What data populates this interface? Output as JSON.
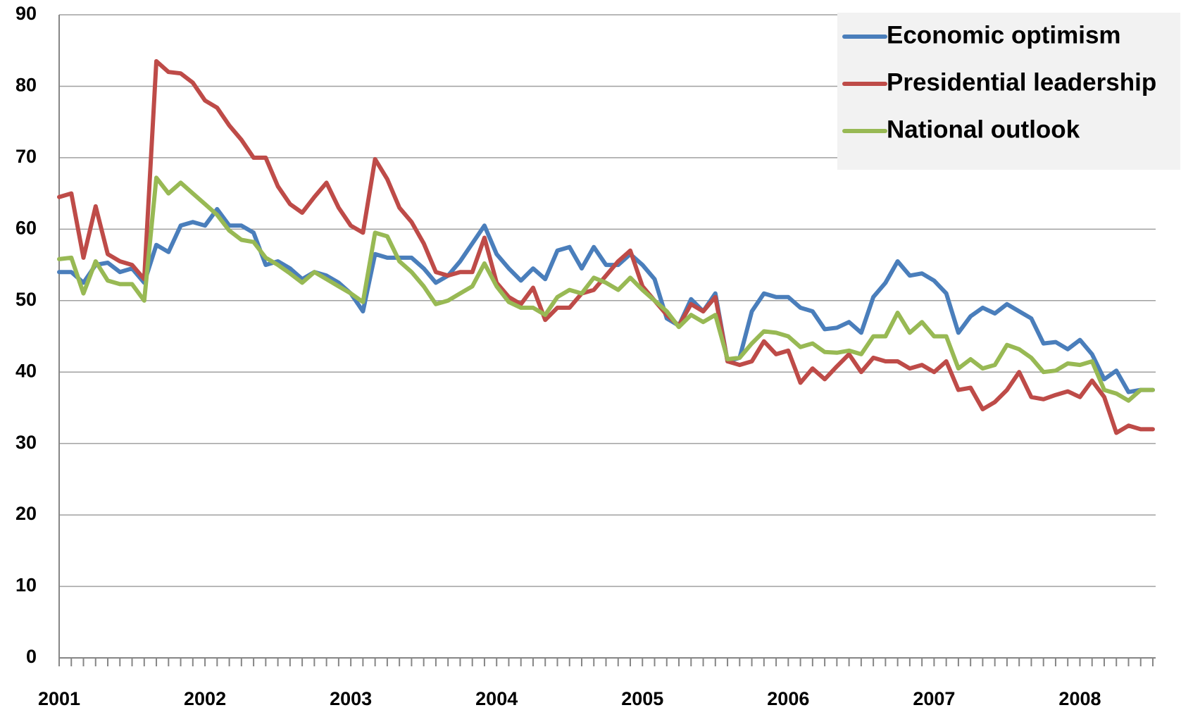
{
  "chart_data": {
    "type": "line",
    "categories": [
      "2001",
      null,
      null,
      null,
      null,
      null,
      null,
      null,
      null,
      null,
      null,
      null,
      "2002",
      null,
      null,
      null,
      null,
      null,
      null,
      null,
      null,
      null,
      null,
      null,
      "2003",
      null,
      null,
      null,
      null,
      null,
      null,
      null,
      null,
      null,
      null,
      null,
      "2004",
      null,
      null,
      null,
      null,
      null,
      null,
      null,
      null,
      null,
      null,
      null,
      "2005",
      null,
      null,
      null,
      null,
      null,
      null,
      null,
      null,
      null,
      null,
      null,
      "2006",
      null,
      null,
      null,
      null,
      null,
      null,
      null,
      null,
      null,
      null,
      null,
      "2007",
      null,
      null,
      null,
      null,
      null,
      null,
      null,
      null,
      null,
      null,
      null,
      "2008",
      null,
      null,
      null,
      null,
      null,
      null
    ],
    "series": [
      {
        "name": "Economic optimism",
        "color": "#4a7ebb",
        "values": [
          54,
          54,
          52.5,
          55,
          55.3,
          54,
          54.5,
          52.5,
          57.8,
          56.8,
          60.5,
          61,
          60.5,
          62.8,
          60.5,
          60.5,
          59.5,
          55,
          55.5,
          54.5,
          53,
          54,
          53.5,
          52.5,
          51,
          48.5,
          56.5,
          56,
          56,
          56,
          54.5,
          52.5,
          53.5,
          55.5,
          58,
          60.5,
          56.5,
          54.5,
          52.8,
          54.5,
          53,
          57,
          57.5,
          54.5,
          57.5,
          55,
          55,
          56.5,
          55,
          53,
          47.5,
          46.5,
          50.2,
          48.5,
          51,
          41.5,
          42,
          48.5,
          51,
          50.5,
          50.5,
          49,
          48.5,
          46,
          46.2,
          47,
          45.5,
          50.5,
          52.5,
          55.5,
          53.5,
          53.8,
          52.8,
          51,
          45.5,
          47.8,
          49,
          48.2,
          49.5,
          48.5,
          47.5,
          44,
          44.2,
          43.2,
          44.5,
          42.5,
          39,
          40.2,
          37.2,
          37.5,
          37.5
        ]
      },
      {
        "name": "Presidential leadership",
        "color": "#be4b48",
        "values": [
          64.5,
          65,
          56,
          63.2,
          56.5,
          55.5,
          55,
          53,
          83.5,
          82,
          81.8,
          80.5,
          78,
          77,
          74.5,
          72.5,
          70,
          70,
          66,
          63.5,
          62.3,
          64.5,
          66.5,
          63,
          60.5,
          59.5,
          69.8,
          67,
          63,
          61,
          58,
          54,
          53.5,
          54,
          54,
          58.8,
          52.5,
          50.5,
          49.5,
          51.8,
          47.3,
          49,
          49,
          51,
          51.5,
          53.5,
          55.5,
          57,
          52,
          50,
          48,
          46.5,
          49.5,
          48.5,
          50.5,
          41.5,
          41,
          41.5,
          44.3,
          42.5,
          43,
          38.5,
          40.5,
          39,
          40.8,
          42.5,
          40,
          42,
          41.5,
          41.5,
          40.5,
          41,
          40,
          41.5,
          37.5,
          37.8,
          34.8,
          35.8,
          37.5,
          40,
          36.5,
          36.2,
          36.8,
          37.3,
          36.5,
          38.8,
          36.5,
          31.5,
          32.5,
          32,
          32
        ]
      },
      {
        "name": "National outlook",
        "color": "#98b954",
        "values": [
          55.8,
          56,
          51,
          55.5,
          52.8,
          52.3,
          52.3,
          50,
          67.2,
          65,
          66.5,
          65,
          63.5,
          62,
          59.8,
          58.5,
          58.2,
          56,
          55,
          53.8,
          52.5,
          54,
          53,
          52,
          51,
          49.8,
          59.5,
          59,
          55.5,
          54,
          52,
          49.5,
          50,
          51,
          52,
          55.2,
          52,
          49.8,
          49,
          49,
          48,
          50.5,
          51.5,
          51,
          53.2,
          52.5,
          51.5,
          53.2,
          51.5,
          50,
          48.5,
          46.3,
          48,
          47,
          48,
          41.8,
          42,
          44,
          45.7,
          45.5,
          45,
          43.5,
          44,
          42.8,
          42.7,
          43,
          42.5,
          45,
          45,
          48.3,
          45.5,
          47,
          45,
          45,
          40.5,
          41.8,
          40.5,
          41,
          43.8,
          43.2,
          42,
          40,
          40.2,
          41.2,
          41,
          41.5,
          37.5,
          37,
          36,
          37.5,
          37.5
        ]
      }
    ],
    "ylim": [
      0,
      90
    ],
    "yticks": [
      0,
      10,
      20,
      30,
      40,
      50,
      60,
      70,
      80,
      90
    ],
    "grid": true,
    "legend": "top-right"
  }
}
